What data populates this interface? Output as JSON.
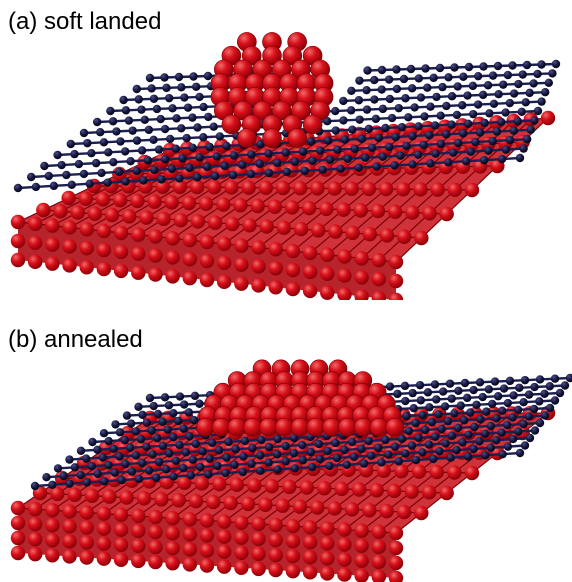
{
  "panels": [
    {
      "id": "a",
      "label": "(a) soft landed"
    },
    {
      "id": "b",
      "label": "(b) annealed"
    }
  ],
  "colors": {
    "substrate_atom": "#d8101a",
    "substrate_atom_highlight": "#f06a6a",
    "substrate_atom_shadow": "#8c0008",
    "sheet_atom": "#14163a",
    "sheet_bond": "#1c1f52",
    "cluster_atom": "#e0141e"
  },
  "icons": {
    "substrate": "red-atom-slab",
    "sheet": "dark-atom-sheet",
    "cluster": "red-atom-cluster"
  }
}
